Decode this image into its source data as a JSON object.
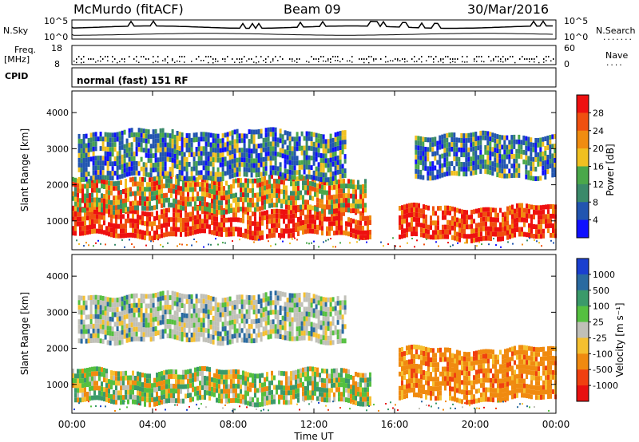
{
  "header": {
    "station": "McMurdo (fitACF)",
    "beam": "Beam 09",
    "date": "30/Mar/2016"
  },
  "top_panel": {
    "left_label": "N.Sky",
    "right_label": "N.Search",
    "right_label_dots": ".......",
    "ytick_top": "10^5",
    "ytick_bottom": "10^0",
    "rtick_top": "10^5",
    "rtick_bottom": "10^0"
  },
  "freq_panel": {
    "label_line1": "Freq.",
    "label_line2": "[MHz]",
    "ytick_top": "18",
    "ytick_bottom": "8",
    "right_label": "Nave",
    "right_label_dots": "....",
    "rtick_top": "60",
    "rtick_bottom": "0"
  },
  "cpid": {
    "label": "CPID",
    "value": "normal (fast) 151 RF"
  },
  "colors": {
    "power_scale": [
      "#1010ff",
      "#2255b0",
      "#3a8a6a",
      "#4aa84a",
      "#f0c020",
      "#f08c10",
      "#f05010",
      "#ee1010"
    ],
    "velocity_scale": [
      "#1a3fd0",
      "#2a6aa0",
      "#3a9a6a",
      "#55c040",
      "#c0c0b8",
      "#f5c030",
      "#f08a10",
      "#f04010",
      "#e81010"
    ]
  },
  "chart_data": [
    {
      "type": "heatmap",
      "title": "Power",
      "ylabel": "Slant Range [km]",
      "yticks": [
        "1000",
        "2000",
        "3000",
        "4000"
      ],
      "ylim": [
        200,
        4600
      ],
      "colorbar": {
        "label": "Power [dB]",
        "ticks": [
          "4",
          "8",
          "12",
          "16",
          "20",
          "24",
          "28"
        ],
        "range": [
          0,
          32
        ]
      },
      "bands": [
        {
          "time_start": 0.0,
          "time_end": 14.8,
          "range_low": 650,
          "range_high": 1350,
          "level": "high"
        },
        {
          "time_start": 16.2,
          "time_end": 24.0,
          "range_low": 600,
          "range_high": 1400,
          "level": "high"
        },
        {
          "time_start": 0.0,
          "time_end": 14.5,
          "range_low": 1400,
          "range_high": 2200,
          "level": "medium"
        },
        {
          "time_start": 0.3,
          "time_end": 13.5,
          "range_low": 2300,
          "range_high": 3500,
          "level": "low"
        },
        {
          "time_start": 17.0,
          "time_end": 24.0,
          "range_low": 2300,
          "range_high": 3400,
          "level": "low"
        }
      ]
    },
    {
      "type": "heatmap",
      "title": "Velocity",
      "ylabel": "Slant Range [km]",
      "yticks": [
        "1000",
        "2000",
        "3000",
        "4000"
      ],
      "ylim": [
        200,
        4600
      ],
      "xlabel": "Time UT",
      "xticks": [
        "00:00",
        "04:00",
        "08:00",
        "12:00",
        "16:00",
        "20:00",
        "00:00"
      ],
      "xlim": [
        0,
        24
      ],
      "colorbar": {
        "label": "Velocity [m s⁻¹]",
        "ticks": [
          "1000",
          "500",
          "100",
          "25",
          "-25",
          "-100",
          "-500",
          "-1000"
        ]
      },
      "bands": [
        {
          "time_start": 0.0,
          "time_end": 14.8,
          "range_low": 600,
          "range_high": 1400,
          "velocity": "mixed -100 to +100"
        },
        {
          "time_start": 16.2,
          "time_end": 24.0,
          "range_low": 550,
          "range_high": 2000,
          "velocity": "-100 to -500"
        },
        {
          "time_start": 0.3,
          "time_end": 13.5,
          "range_low": 2300,
          "range_high": 3500,
          "velocity": "-25 to 25"
        }
      ]
    }
  ]
}
